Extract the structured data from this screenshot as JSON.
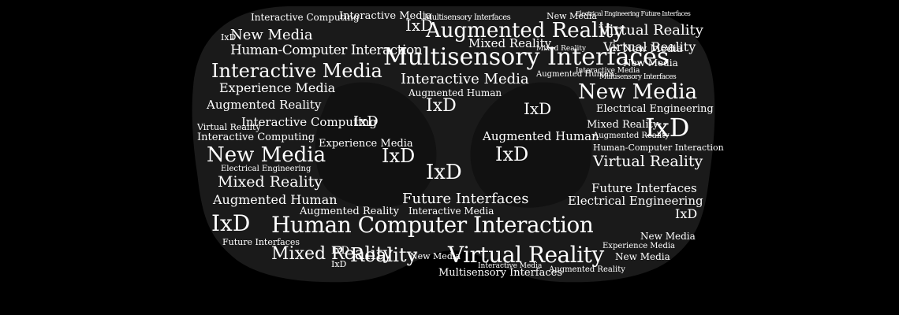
{
  "colors": {
    "background": "#000000",
    "headset": "#1a1a1a",
    "lens": "#0c0c0c",
    "text": "#ffffff"
  },
  "cloud": {
    "words": [
      {
        "text": "Interactive Computing"
      },
      {
        "text": "Interactive Media"
      },
      {
        "text": "New Media"
      },
      {
        "text": "Multisensory Interfaces"
      },
      {
        "text": "Electrical Engineering Future Interfaces"
      },
      {
        "text": "New Media"
      },
      {
        "text": "Mixed Reality"
      },
      {
        "text": "IxD"
      },
      {
        "text": "Augmented Reality"
      },
      {
        "text": "Virtual Reality"
      },
      {
        "text": "New Media"
      },
      {
        "text": "IxD"
      },
      {
        "text": "Virtual Reality"
      },
      {
        "text": "Human-Computer Interaction"
      },
      {
        "text": "Mixed Reality"
      },
      {
        "text": "Multisensory Interfaces"
      },
      {
        "text": "Interactive Media"
      },
      {
        "text": "Augmented Human"
      },
      {
        "text": "New Media"
      },
      {
        "text": "Interactive Media"
      },
      {
        "text": "Experience Media"
      },
      {
        "text": "Interactive Media"
      },
      {
        "text": "Augmented Reality"
      },
      {
        "text": "Multisensory Interfaces"
      },
      {
        "text": "Augmented Human"
      },
      {
        "text": "New Media"
      },
      {
        "text": "IxD"
      },
      {
        "text": "Electrical Engineering"
      },
      {
        "text": "Interactive Computing"
      },
      {
        "text": "IxD"
      },
      {
        "text": "Virtual Reality"
      },
      {
        "text": "IxD"
      },
      {
        "text": "Mixed Reality"
      },
      {
        "text": "Interactive Computing"
      },
      {
        "text": "IxD"
      },
      {
        "text": "Augmented Reality"
      },
      {
        "text": "Human-Computer Interaction"
      },
      {
        "text": "Augmented Human"
      },
      {
        "text": "New Media"
      },
      {
        "text": "Experience Media"
      },
      {
        "text": "IxD"
      },
      {
        "text": "IxD"
      },
      {
        "text": "Virtual Reality"
      },
      {
        "text": "IxD"
      },
      {
        "text": "Electrical Engineering"
      },
      {
        "text": "Mixed Reality"
      },
      {
        "text": "Future Interfaces"
      },
      {
        "text": "Augmented Human"
      },
      {
        "text": "Augmented Reality"
      },
      {
        "text": "Interactive Media"
      },
      {
        "text": "Electrical Engineering"
      },
      {
        "text": "Future Interfaces"
      },
      {
        "text": "IxD"
      },
      {
        "text": "Human Computer Interaction"
      },
      {
        "text": "IxD"
      },
      {
        "text": "New Media"
      },
      {
        "text": "Future Interfaces"
      },
      {
        "text": "Mixed Reality"
      },
      {
        "text": "IxD"
      },
      {
        "text": "Reality"
      },
      {
        "text": "New Media"
      },
      {
        "text": "Virtual Reality"
      },
      {
        "text": "Experience Media"
      },
      {
        "text": "New Media"
      },
      {
        "text": "Multisensory Interfaces"
      },
      {
        "text": "Interactive Media"
      },
      {
        "text": "Augmented Reality"
      },
      {
        "text": "IxD"
      }
    ]
  }
}
